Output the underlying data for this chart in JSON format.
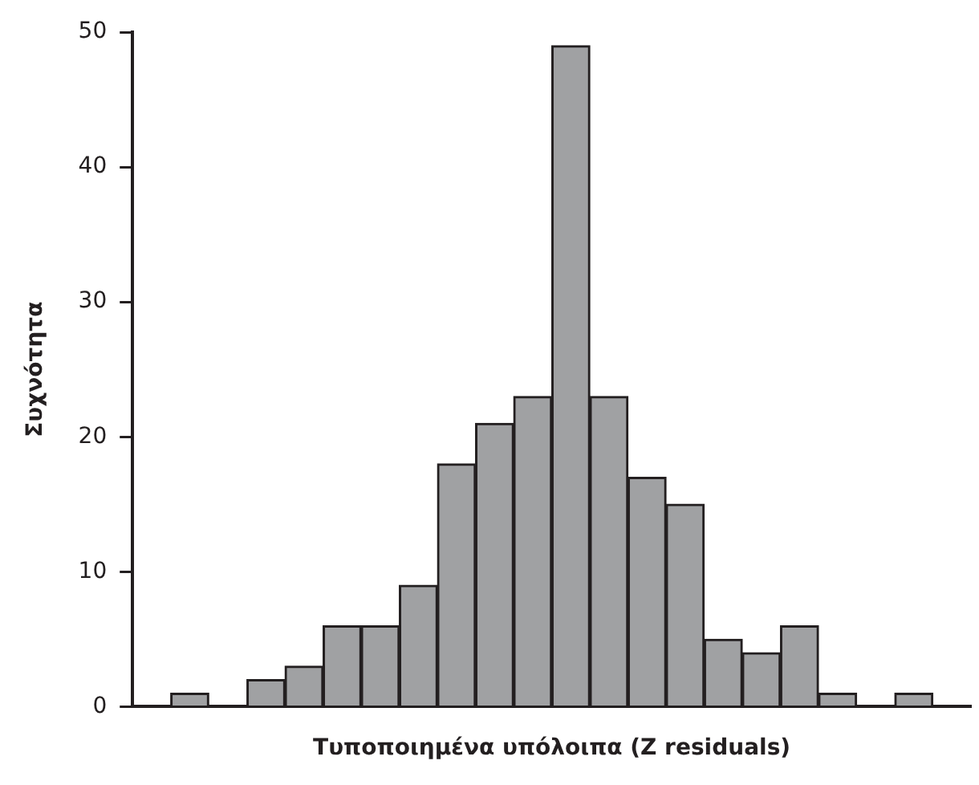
{
  "chart_data": {
    "type": "bar",
    "xlabel": "Τυποποιημένα υπόλοιπα (Z residuals)",
    "ylabel": "Συχνότητα",
    "categories": [
      null,
      null,
      null,
      null,
      null,
      null,
      null,
      null,
      null,
      null,
      null,
      null,
      null,
      null,
      null,
      null,
      null,
      null,
      null,
      null,
      null,
      null
    ],
    "values": [
      null,
      1,
      0,
      2,
      3,
      6,
      6,
      9,
      18,
      21,
      23,
      49,
      23,
      17,
      15,
      5,
      4,
      6,
      1,
      0,
      1,
      null
    ],
    "color": "#a0a1a3",
    "ylim": [
      0,
      50
    ],
    "yticks": [
      0,
      10,
      20,
      30,
      40,
      50
    ],
    "grid": false,
    "legend": false,
    "tick_labels": "y"
  }
}
